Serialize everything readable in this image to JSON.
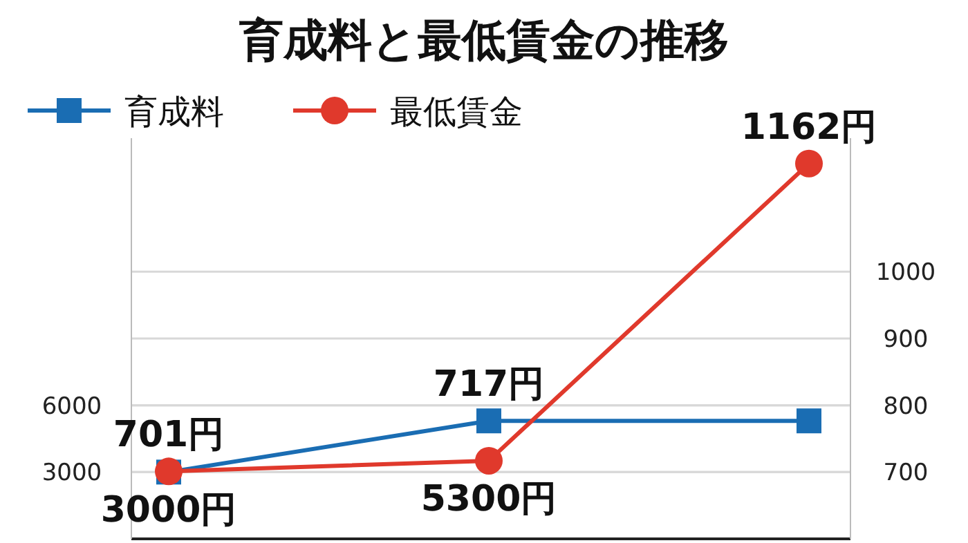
{
  "chart_data": {
    "type": "line",
    "title": "育成料と最低賃金の推移",
    "categories": [
      null,
      null,
      null
    ],
    "series": [
      {
        "name": "育成料",
        "color": "#1a6db3",
        "marker": "square",
        "values": [
          3000,
          5300,
          5300
        ],
        "value_labels": [
          "3000円",
          "5300円",
          null
        ]
      },
      {
        "name": "最低賃金",
        "color": "#e0392c",
        "marker": "circle",
        "axis": "y2",
        "values": [
          701,
          717,
          1162
        ],
        "value_labels": [
          "701円",
          "717円",
          "1162円"
        ]
      }
    ],
    "ylim": [
      0,
      18000
    ],
    "yticks": [
      3000,
      6000
    ],
    "y2lim": [
      600,
      1200
    ],
    "y2ticks": [
      700,
      800,
      900,
      1000
    ],
    "grid": true,
    "legend": "top left"
  }
}
